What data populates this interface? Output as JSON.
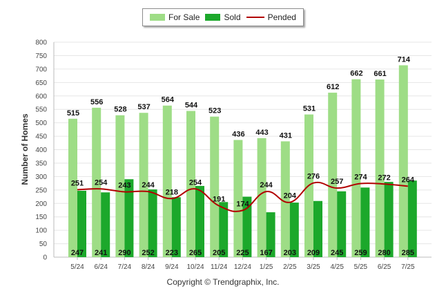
{
  "legend": {
    "for_sale": "For Sale",
    "sold": "Sold",
    "pended": "Pended"
  },
  "copyright": "Copyright © Trendgraphix, Inc.",
  "colors": {
    "for_sale": "#9edd86",
    "sold": "#1ca82b",
    "pended": "#b20000",
    "grid": "#e6e6e6",
    "axis_text": "#444444"
  },
  "chart_data": {
    "type": "bar",
    "title": "",
    "xlabel": "",
    "ylabel": "Number of Homes",
    "ylim": [
      0,
      800
    ],
    "yticks": [
      0,
      50,
      100,
      150,
      200,
      250,
      300,
      350,
      400,
      450,
      500,
      550,
      600,
      650,
      700,
      750,
      800
    ],
    "grid": true,
    "legend_position": "top-center",
    "categories": [
      "5/24",
      "6/24",
      "7/24",
      "8/24",
      "9/24",
      "10/24",
      "11/24",
      "12/24",
      "1/25",
      "2/25",
      "3/25",
      "4/25",
      "5/25",
      "6/25",
      "7/25"
    ],
    "series": [
      {
        "name": "For Sale",
        "type": "bar",
        "values": [
          515,
          556,
          528,
          537,
          564,
          544,
          523,
          436,
          443,
          431,
          531,
          612,
          662,
          661,
          714
        ]
      },
      {
        "name": "Sold",
        "type": "bar",
        "values": [
          247,
          241,
          290,
          252,
          223,
          265,
          205,
          225,
          167,
          203,
          209,
          245,
          259,
          280,
          285
        ]
      },
      {
        "name": "Pended",
        "type": "line",
        "values": [
          251,
          254,
          243,
          244,
          218,
          254,
          191,
          174,
          244,
          204,
          276,
          257,
          274,
          272,
          264
        ]
      }
    ]
  }
}
